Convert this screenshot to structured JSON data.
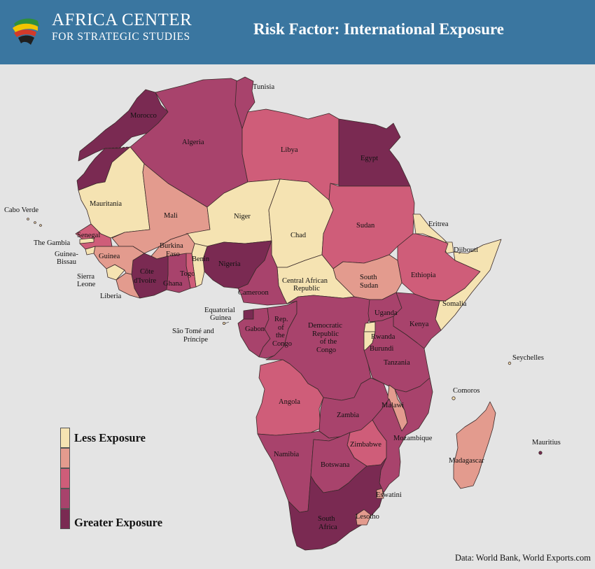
{
  "header": {
    "logo_line1": "AFRICA CENTER",
    "logo_line2": "FOR STRATEGIC STUDIES",
    "title": "Risk Factor: International Exposure",
    "background": "#3a76a0"
  },
  "palette": {
    "level1": "#f5e3b2",
    "level2": "#e39b8e",
    "level3": "#cf5d79",
    "level4": "#a8436c",
    "level5": "#7a2a52"
  },
  "legend": {
    "low_label": "Less Exposure",
    "high_label": "Greater Exposure"
  },
  "source": "Data: World Bank, World Exports.com",
  "countries": {
    "morocco": {
      "name": "Morocco",
      "level": 5
    },
    "algeria": {
      "name": "Algeria",
      "level": 4
    },
    "tunisia": {
      "name": "Tunisia",
      "level": 4
    },
    "libya": {
      "name": "Libya",
      "level": 3
    },
    "egypt": {
      "name": "Egypt",
      "level": 5
    },
    "mauritania": {
      "name": "Mauritania",
      "level": 1
    },
    "mali": {
      "name": "Mali",
      "level": 2
    },
    "niger": {
      "name": "Niger",
      "level": 1
    },
    "chad": {
      "name": "Chad",
      "level": 1
    },
    "sudan": {
      "name": "Sudan",
      "level": 3
    },
    "eritrea": {
      "name": "Eritrea",
      "level": 1
    },
    "djibouti": {
      "name": "Djibouti",
      "level": 1
    },
    "ethiopia": {
      "name": "Ethiopia",
      "level": 3
    },
    "somalia": {
      "name": "Somalia",
      "level": 1
    },
    "south_sudan": {
      "name": "South Sudan",
      "level": 2
    },
    "central_african_republic": {
      "name": "Central African Republic",
      "level": 1
    },
    "nigeria": {
      "name": "Nigeria",
      "level": 5
    },
    "cameroon": {
      "name": "Cameroon",
      "level": 4
    },
    "benin": {
      "name": "Benin",
      "level": 1
    },
    "togo": {
      "name": "Togo",
      "level": 3
    },
    "ghana": {
      "name": "Ghana",
      "level": 4
    },
    "burkina_faso": {
      "name": "Burkina Faso",
      "level": 2
    },
    "cote_divoire": {
      "name": "Côte d'Ivoire",
      "level": 5
    },
    "liberia": {
      "name": "Liberia",
      "level": 2
    },
    "sierra_leone": {
      "name": "Sierra Leone",
      "level": 1
    },
    "guinea": {
      "name": "Guinea",
      "level": 2
    },
    "guinea_bissau": {
      "name": "Guinea-Bissau",
      "level": 1
    },
    "the_gambia": {
      "name": "The Gambia",
      "level": 1
    },
    "senegal": {
      "name": "Senegal",
      "level": 3
    },
    "cabo_verde": {
      "name": "Cabo Verde",
      "level": 1
    },
    "equatorial_guinea": {
      "name": "Equatorial Guinea",
      "level": 5
    },
    "sao_tome_and_principe": {
      "name": "São Tomé and Príncipe",
      "level": 1
    },
    "gabon": {
      "name": "Gabon",
      "level": 4
    },
    "rep_of_the_congo": {
      "name": "Rep. of the Congo",
      "level": 4
    },
    "dr_congo": {
      "name": "Democratic Republic of the Congo",
      "level": 4
    },
    "uganda": {
      "name": "Uganda",
      "level": 4
    },
    "kenya": {
      "name": "Kenya",
      "level": 4
    },
    "rwanda": {
      "name": "Rwanda",
      "level": 1
    },
    "burundi": {
      "name": "Burundi",
      "level": 1
    },
    "tanzania": {
      "name": "Tanzania",
      "level": 4
    },
    "angola": {
      "name": "Angola",
      "level": 3
    },
    "zambia": {
      "name": "Zambia",
      "level": 4
    },
    "malawi": {
      "name": "Malawi",
      "level": 2
    },
    "mozambique": {
      "name": "Mozambique",
      "level": 4
    },
    "zimbabwe": {
      "name": "Zimbabwe",
      "level": 3
    },
    "namibia": {
      "name": "Namibia",
      "level": 4
    },
    "botswana": {
      "name": "Botswana",
      "level": 4
    },
    "south_africa": {
      "name": "South Africa",
      "level": 5
    },
    "eswatini": {
      "name": "Eswatini",
      "level": 2
    },
    "lesotho": {
      "name": "Lesotho",
      "level": 2
    },
    "madagascar": {
      "name": "Madagascar",
      "level": 2
    },
    "comoros": {
      "name": "Comoros",
      "level": 1
    },
    "seychelles": {
      "name": "Seychelles",
      "level": 1
    },
    "mauritius": {
      "name": "Mauritius",
      "level": 5
    }
  }
}
